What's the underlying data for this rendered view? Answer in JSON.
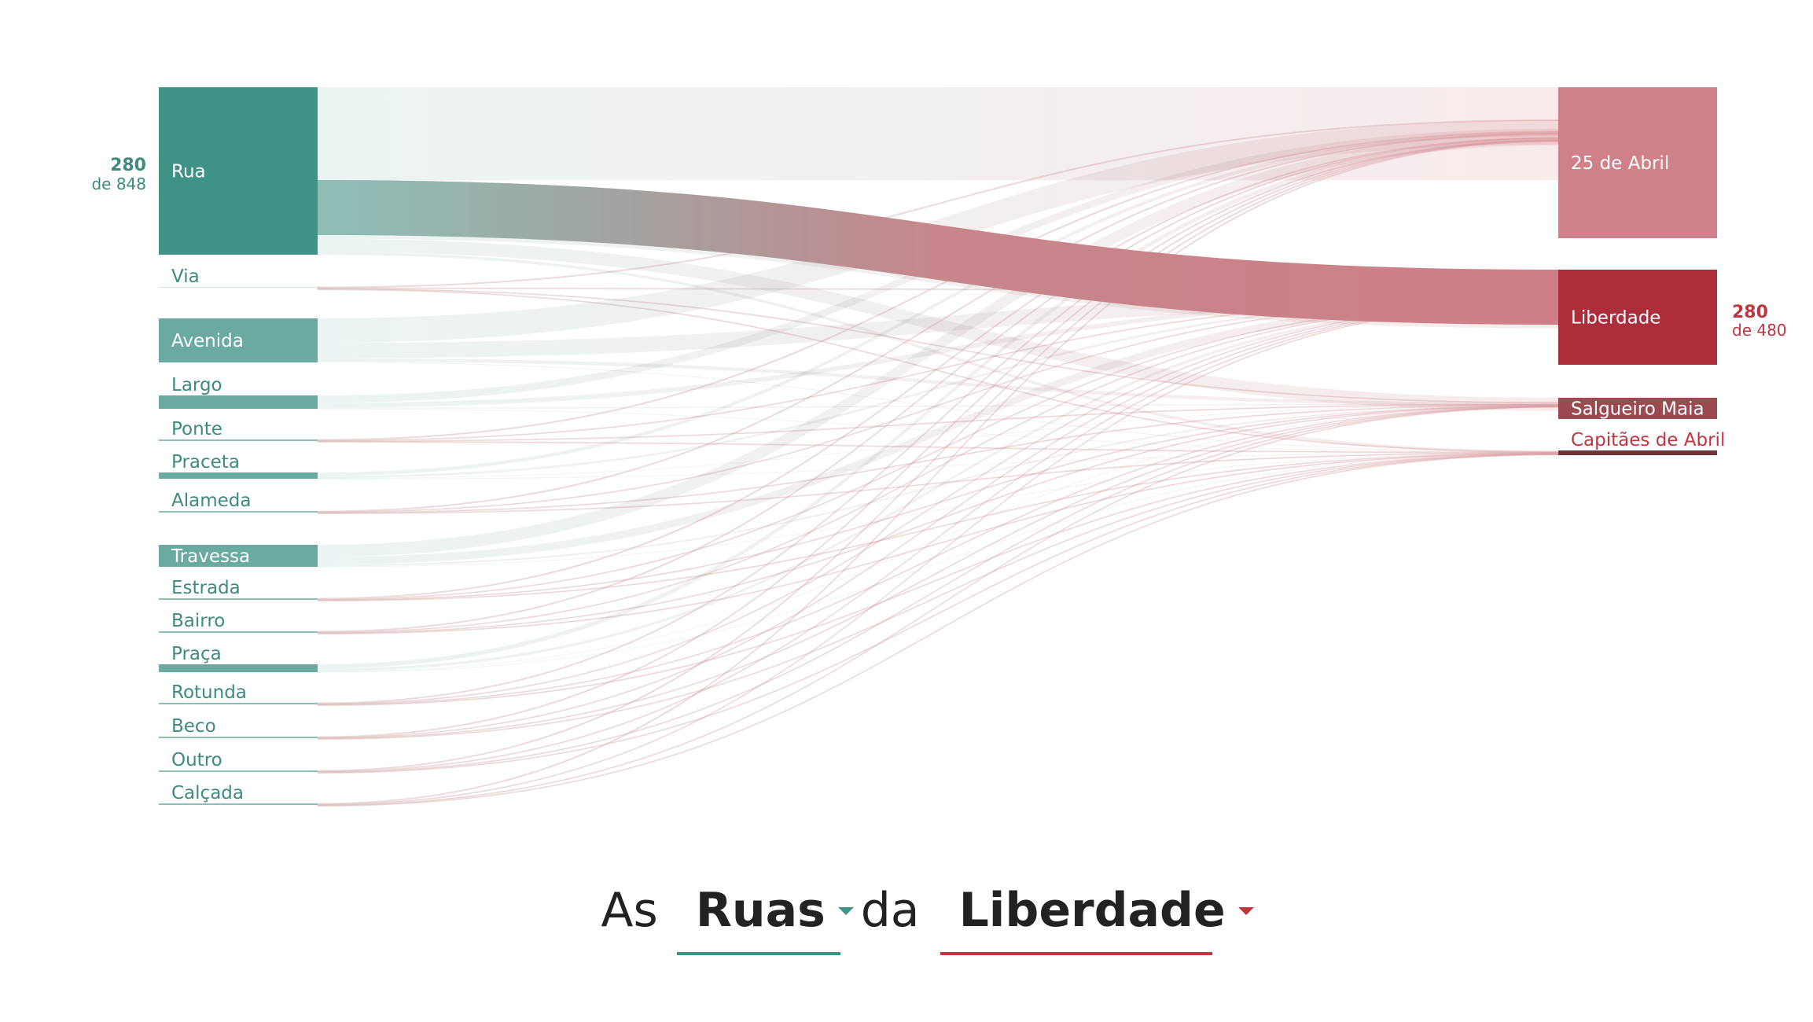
{
  "colors": {
    "left": "#3f9286",
    "right_main": "#ab2e3a",
    "right_light": "#cf8088",
    "right_mid": "#9b4a52",
    "right_dark": "#6e3438",
    "type_text": "#3f8a80",
    "name_text": "#c0353f"
  },
  "chart_data": {
    "type": "sankey",
    "left_nodes": [
      {
        "name": "Rua",
        "value": 280
      },
      {
        "name": "Via",
        "value": 0
      },
      {
        "name": "Avenida",
        "value": 0
      },
      {
        "name": "Largo",
        "value": 0
      },
      {
        "name": "Ponte",
        "value": 0
      },
      {
        "name": "Praceta",
        "value": 0
      },
      {
        "name": "Alameda",
        "value": 0
      },
      {
        "name": "Travessa",
        "value": 0
      },
      {
        "name": "Estrada",
        "value": 0
      },
      {
        "name": "Bairro",
        "value": 0
      },
      {
        "name": "Praça",
        "value": 0
      },
      {
        "name": "Rotunda",
        "value": 0
      },
      {
        "name": "Beco",
        "value": 0
      },
      {
        "name": "Outro",
        "value": 0
      },
      {
        "name": "Calçada",
        "value": 0
      }
    ],
    "right_nodes": [
      {
        "name": "25 de Abril",
        "value": 0
      },
      {
        "name": "Liberdade",
        "value": 280
      },
      {
        "name": "Salgueiro Maia",
        "value": 0
      },
      {
        "name": "Capitães de Abril",
        "value": 0
      }
    ],
    "highlight_link": {
      "source": "Rua",
      "target": "Liberdade",
      "value": 280
    },
    "left_count": {
      "value": "280",
      "of_label": "de 848"
    },
    "right_count": {
      "value": "280",
      "of_label": "de 480"
    }
  },
  "title": {
    "word_before": "As",
    "type_select": {
      "value": "Ruas"
    },
    "word_middle": "da",
    "name_select": {
      "value": "Liberdade"
    }
  }
}
